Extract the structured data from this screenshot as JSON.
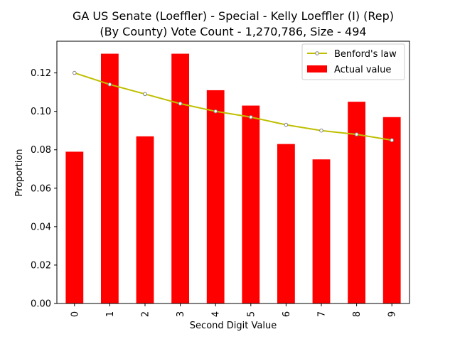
{
  "chart_data": {
    "type": "bar",
    "title_line1": "GA US Senate (Loeffler) - Special - Kelly Loeffler (I) (Rep)",
    "title_line2": "(By County) Vote Count - 1,270,786, Size - 494",
    "xlabel": "Second Digit Value",
    "ylabel": "Proportion",
    "categories": [
      "0",
      "1",
      "2",
      "3",
      "4",
      "5",
      "6",
      "7",
      "8",
      "9"
    ],
    "ylim": [
      0,
      0.1365
    ],
    "yticks": [
      "0.00",
      "0.02",
      "0.04",
      "0.06",
      "0.08",
      "0.10",
      "0.12"
    ],
    "ytick_values": [
      0,
      0.02,
      0.04,
      0.06,
      0.08,
      0.1,
      0.12
    ],
    "grid": false,
    "legend_position": "top-right",
    "series": [
      {
        "name": "Actual value",
        "kind": "bar",
        "color": "#ff0000",
        "values": [
          0.079,
          0.13,
          0.087,
          0.13,
          0.111,
          0.103,
          0.083,
          0.075,
          0.105,
          0.097
        ]
      },
      {
        "name": "Benford's law",
        "kind": "line",
        "color": "#bfbf00",
        "marker_color": "#808080",
        "values": [
          0.12,
          0.114,
          0.109,
          0.104,
          0.1,
          0.097,
          0.093,
          0.09,
          0.088,
          0.085
        ]
      }
    ]
  }
}
